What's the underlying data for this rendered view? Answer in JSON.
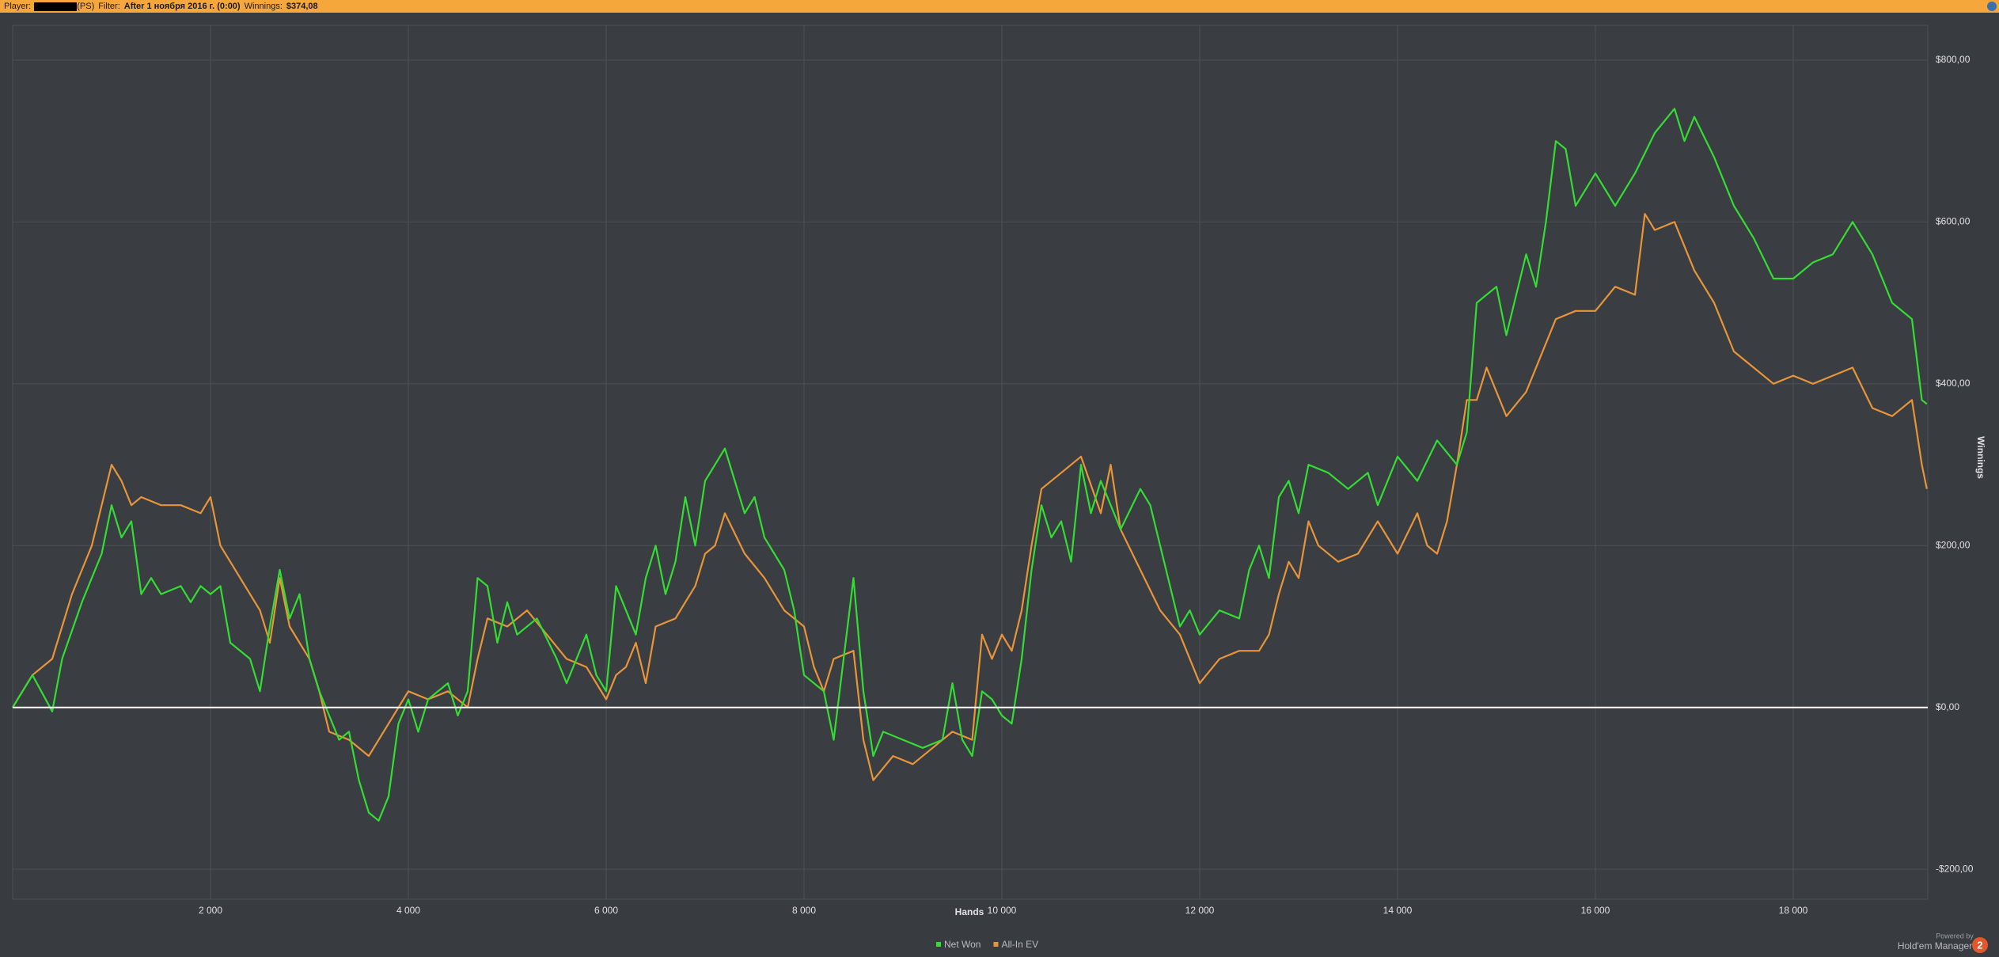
{
  "header": {
    "player_label": "Player:",
    "player_site": "(PS)",
    "filter_label": "Filter:",
    "filter_value": "After 1 ноября 2016 г. (0:00)",
    "winnings_label": "Winnings:",
    "winnings_value": "$374,08"
  },
  "footer": {
    "powered_by": "Powered by",
    "product": "Hold'em Manager",
    "version": "2"
  },
  "chart_data": {
    "type": "line",
    "x_label": "Hands",
    "y_label": "Winnings",
    "xlim": [
      0,
      19360
    ],
    "ylim": [
      -237,
      843
    ],
    "grid": true,
    "zero_line_color": "#ffffff",
    "xticks": [
      {
        "value": 2000,
        "label": "2 000"
      },
      {
        "value": 4000,
        "label": "4 000"
      },
      {
        "value": 6000,
        "label": "6 000"
      },
      {
        "value": 8000,
        "label": "8 000"
      },
      {
        "value": 10000,
        "label": "10 000"
      },
      {
        "value": 12000,
        "label": "12 000"
      },
      {
        "value": 14000,
        "label": "14 000"
      },
      {
        "value": 16000,
        "label": "16 000"
      },
      {
        "value": 18000,
        "label": "18 000"
      }
    ],
    "yticks": [
      {
        "value": -200,
        "label": "-$200,00"
      },
      {
        "value": 0,
        "label": "$0,00"
      },
      {
        "value": 200,
        "label": "$200,00"
      },
      {
        "value": 400,
        "label": "$400,00"
      },
      {
        "value": 600,
        "label": "$600,00"
      },
      {
        "value": 800,
        "label": "$800,00"
      }
    ],
    "series": [
      {
        "name": "Net Won",
        "color": "#33dd33",
        "x": [
          0,
          200,
          400,
          500,
          700,
          900,
          1000,
          1100,
          1200,
          1300,
          1400,
          1500,
          1700,
          1800,
          1900,
          2000,
          2100,
          2200,
          2400,
          2500,
          2600,
          2700,
          2800,
          2900,
          3000,
          3100,
          3200,
          3300,
          3400,
          3500,
          3600,
          3700,
          3800,
          3900,
          4000,
          4100,
          4200,
          4400,
          4500,
          4600,
          4700,
          4800,
          4900,
          5000,
          5100,
          5300,
          5500,
          5600,
          5800,
          5900,
          6000,
          6100,
          6200,
          6300,
          6400,
          6500,
          6600,
          6700,
          6800,
          6900,
          7000,
          7100,
          7200,
          7300,
          7400,
          7500,
          7600,
          7800,
          7900,
          8000,
          8200,
          8300,
          8400,
          8500,
          8600,
          8700,
          8800,
          9000,
          9200,
          9400,
          9500,
          9600,
          9700,
          9800,
          9900,
          10000,
          10100,
          10200,
          10300,
          10400,
          10500,
          10600,
          10700,
          10800,
          10900,
          11000,
          11200,
          11400,
          11500,
          11600,
          11700,
          11800,
          11900,
          12000,
          12200,
          12400,
          12500,
          12600,
          12700,
          12800,
          12900,
          13000,
          13100,
          13300,
          13500,
          13700,
          13800,
          14000,
          14200,
          14400,
          14600,
          14700,
          14800,
          15000,
          15100,
          15300,
          15400,
          15500,
          15600,
          15700,
          15800,
          16000,
          16200,
          16400,
          16600,
          16800,
          16900,
          17000,
          17200,
          17400,
          17600,
          17800,
          18000,
          18200,
          18400,
          18600,
          18800,
          19000,
          19200,
          19300,
          19350
        ],
        "values": [
          0,
          40,
          -5,
          60,
          130,
          190,
          250,
          210,
          230,
          140,
          160,
          140,
          150,
          130,
          150,
          140,
          150,
          80,
          60,
          20,
          100,
          170,
          110,
          140,
          60,
          20,
          -10,
          -40,
          -30,
          -90,
          -130,
          -140,
          -110,
          -20,
          10,
          -30,
          10,
          30,
          -10,
          20,
          160,
          150,
          80,
          130,
          90,
          110,
          60,
          30,
          90,
          40,
          20,
          150,
          120,
          90,
          160,
          200,
          140,
          180,
          260,
          200,
          280,
          300,
          320,
          280,
          240,
          260,
          210,
          170,
          120,
          40,
          20,
          -40,
          60,
          160,
          20,
          -60,
          -30,
          -40,
          -50,
          -40,
          30,
          -40,
          -60,
          20,
          10,
          -10,
          -20,
          60,
          170,
          250,
          210,
          230,
          180,
          300,
          240,
          280,
          220,
          270,
          250,
          200,
          150,
          100,
          120,
          90,
          120,
          110,
          170,
          200,
          160,
          260,
          280,
          240,
          300,
          290,
          270,
          290,
          250,
          310,
          280,
          330,
          300,
          340,
          500,
          520,
          460,
          560,
          520,
          600,
          700,
          690,
          620,
          660,
          620,
          660,
          710,
          740,
          700,
          730,
          680,
          620,
          580,
          530,
          530,
          550,
          560,
          600,
          560,
          500,
          480,
          380,
          375
        ]
      },
      {
        "name": "All-In EV",
        "color": "#e8953a",
        "x": [
          0,
          200,
          400,
          500,
          600,
          700,
          800,
          900,
          1000,
          1100,
          1200,
          1300,
          1500,
          1700,
          1900,
          2000,
          2100,
          2200,
          2300,
          2500,
          2600,
          2700,
          2800,
          2900,
          3000,
          3100,
          3200,
          3400,
          3600,
          3800,
          4000,
          4200,
          4400,
          4600,
          4700,
          4800,
          5000,
          5200,
          5400,
          5600,
          5800,
          6000,
          6100,
          6200,
          6300,
          6400,
          6500,
          6700,
          6800,
          6900,
          7000,
          7100,
          7200,
          7400,
          7600,
          7800,
          8000,
          8100,
          8200,
          8300,
          8500,
          8600,
          8700,
          8900,
          9100,
          9300,
          9500,
          9700,
          9800,
          9900,
          10000,
          10100,
          10200,
          10300,
          10400,
          10600,
          10800,
          11000,
          11100,
          11200,
          11400,
          11600,
          11800,
          11900,
          12000,
          12200,
          12400,
          12600,
          12700,
          12800,
          12900,
          13000,
          13100,
          13200,
          13400,
          13600,
          13800,
          14000,
          14200,
          14300,
          14400,
          14500,
          14600,
          14700,
          14800,
          14900,
          15100,
          15300,
          15400,
          15600,
          15800,
          16000,
          16200,
          16400,
          16500,
          16600,
          16800,
          17000,
          17200,
          17400,
          17600,
          17800,
          18000,
          18200,
          18400,
          18600,
          18800,
          19000,
          19200,
          19300,
          19350
        ],
        "values": [
          0,
          40,
          60,
          100,
          140,
          170,
          200,
          250,
          300,
          280,
          250,
          260,
          250,
          250,
          240,
          260,
          200,
          180,
          160,
          120,
          80,
          160,
          100,
          80,
          60,
          20,
          -30,
          -40,
          -60,
          -20,
          20,
          10,
          20,
          0,
          60,
          110,
          100,
          120,
          90,
          60,
          50,
          10,
          40,
          50,
          80,
          30,
          100,
          110,
          130,
          150,
          190,
          200,
          240,
          190,
          160,
          120,
          100,
          50,
          20,
          60,
          70,
          -40,
          -90,
          -60,
          -70,
          -50,
          -30,
          -40,
          90,
          60,
          90,
          70,
          120,
          200,
          270,
          290,
          310,
          240,
          300,
          220,
          170,
          120,
          90,
          60,
          30,
          60,
          70,
          70,
          90,
          140,
          180,
          160,
          230,
          200,
          180,
          190,
          230,
          190,
          240,
          200,
          190,
          230,
          300,
          380,
          380,
          420,
          360,
          390,
          420,
          480,
          490,
          490,
          520,
          510,
          610,
          590,
          600,
          540,
          500,
          440,
          420,
          400,
          410,
          400,
          410,
          420,
          370,
          360,
          380,
          300,
          270
        ]
      }
    ]
  }
}
